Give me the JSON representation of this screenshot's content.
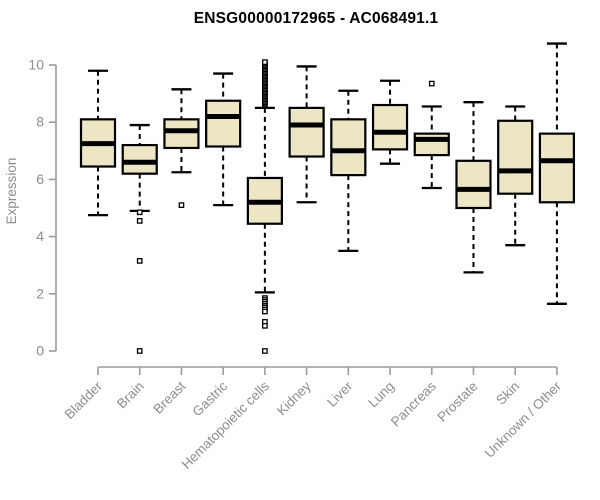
{
  "colors": {
    "background": "#ffffff",
    "title_text": "#000000",
    "axis_line": "#9b9b9b",
    "axis_text": "#8d8d8d",
    "box_fill": "#ece6c5",
    "box_stroke": "#000000",
    "outlier_fill": "#ffffff"
  },
  "chart_data": {
    "type": "boxplot",
    "title": "ENSG00000172965 - AC068491.1",
    "xlabel": "",
    "ylabel": "Expression",
    "ylim": [
      0,
      10
    ],
    "yticks": [
      0,
      2,
      4,
      6,
      8,
      10
    ],
    "grid": false,
    "legend": null,
    "x_tick_rotation": -45,
    "box_fill": "#ece6c5",
    "categories": [
      "Bladder",
      "Brain",
      "Breast",
      "Gastric",
      "Hematopoietic cells",
      "Kidney",
      "Liver",
      "Lung",
      "Pancreas",
      "Prostate",
      "Skin",
      "Unknown / Other"
    ],
    "series": [
      {
        "name": "Bladder",
        "whisker_low": 4.75,
        "q1": 6.45,
        "median": 7.25,
        "q3": 8.1,
        "whisker_high": 9.8,
        "outliers": []
      },
      {
        "name": "Brain",
        "whisker_low": 4.9,
        "q1": 6.2,
        "median": 6.6,
        "q3": 7.2,
        "whisker_high": 7.9,
        "outliers": [
          4.85,
          4.55,
          3.15,
          0
        ]
      },
      {
        "name": "Breast",
        "whisker_low": 6.25,
        "q1": 7.1,
        "median": 7.7,
        "q3": 8.1,
        "whisker_high": 9.15,
        "outliers": [
          5.1
        ]
      },
      {
        "name": "Gastric",
        "whisker_low": 5.1,
        "q1": 7.15,
        "median": 8.2,
        "q3": 8.75,
        "whisker_high": 9.7,
        "outliers": []
      },
      {
        "name": "Hematopoietic cells",
        "whisker_low": 2.05,
        "q1": 4.45,
        "median": 5.2,
        "q3": 6.05,
        "whisker_high": 8.5,
        "outliers": [
          8.6,
          8.65,
          8.7,
          8.75,
          8.8,
          8.85,
          8.9,
          8.95,
          9.0,
          9.05,
          9.1,
          9.15,
          9.2,
          9.25,
          9.3,
          9.35,
          9.4,
          9.45,
          9.5,
          9.55,
          9.6,
          9.65,
          9.7,
          9.75,
          9.8,
          9.85,
          9.9,
          9.95,
          10.0,
          10.05,
          10.1,
          1.85,
          1.78,
          1.72,
          1.65,
          1.58,
          1.52,
          1.45,
          1.38,
          1.02,
          0.88,
          0
        ]
      },
      {
        "name": "Kidney",
        "whisker_low": 5.2,
        "q1": 6.8,
        "median": 7.9,
        "q3": 8.5,
        "whisker_high": 9.95,
        "outliers": []
      },
      {
        "name": "Liver",
        "whisker_low": 3.5,
        "q1": 6.15,
        "median": 7.0,
        "q3": 8.1,
        "whisker_high": 9.1,
        "outliers": []
      },
      {
        "name": "Lung",
        "whisker_low": 6.55,
        "q1": 7.05,
        "median": 7.65,
        "q3": 8.6,
        "whisker_high": 9.45,
        "outliers": []
      },
      {
        "name": "Pancreas",
        "whisker_low": 5.7,
        "q1": 6.85,
        "median": 7.4,
        "q3": 7.6,
        "whisker_high": 8.55,
        "outliers": [
          9.35
        ]
      },
      {
        "name": "Prostate",
        "whisker_low": 2.75,
        "q1": 5.0,
        "median": 5.65,
        "q3": 6.65,
        "whisker_high": 8.7,
        "outliers": []
      },
      {
        "name": "Skin",
        "whisker_low": 3.7,
        "q1": 5.5,
        "median": 6.3,
        "q3": 8.05,
        "whisker_high": 8.55,
        "outliers": []
      },
      {
        "name": "Unknown / Other",
        "whisker_low": 1.65,
        "q1": 5.2,
        "median": 6.65,
        "q3": 7.6,
        "whisker_high": 10.75,
        "outliers": []
      }
    ]
  }
}
